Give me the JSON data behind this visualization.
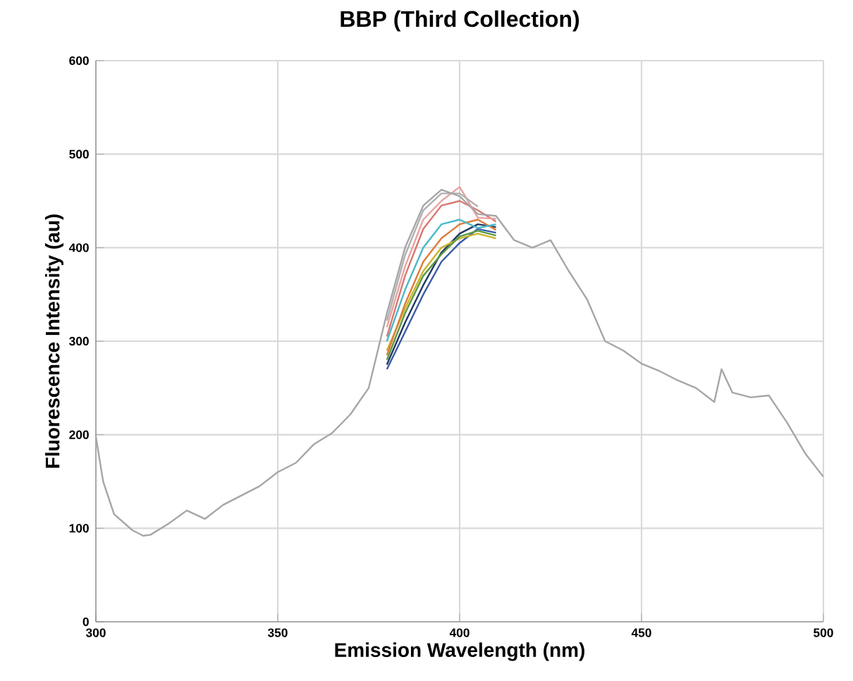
{
  "chart_data": {
    "type": "line",
    "title": "BBP (Third Collection)",
    "xlabel": "Emission Wavelength (nm)",
    "ylabel": "Fluorescence Intensity (au)",
    "xlim": [
      300,
      500
    ],
    "xticks": [
      300,
      350,
      400,
      450,
      500
    ],
    "ylim": [
      0,
      600
    ],
    "yticks": [
      0,
      100,
      200,
      300,
      400,
      500,
      600
    ],
    "grid": true,
    "marker": "none",
    "line_style": "solid",
    "x": [
      300,
      302,
      305,
      310,
      313,
      315,
      320,
      325,
      330,
      335,
      340,
      345,
      350,
      355,
      360,
      365,
      370,
      375,
      380,
      385,
      390,
      395,
      400,
      405,
      410,
      415,
      420,
      425,
      430,
      435,
      440,
      445,
      450,
      455,
      460,
      465,
      470,
      472,
      475,
      480,
      485,
      490,
      495,
      500
    ],
    "series": [
      {
        "color": "#3a5ba8",
        "values": [
          null,
          null,
          null,
          null,
          null,
          null,
          null,
          null,
          null,
          null,
          null,
          null,
          null,
          null,
          null,
          null,
          null,
          null,
          270,
          310,
          350,
          385,
          405,
          420,
          416,
          null,
          null,
          null,
          null,
          null,
          null,
          null,
          null,
          null,
          null,
          null,
          null,
          null,
          null,
          null,
          null,
          null,
          null,
          null
        ]
      },
      {
        "color": "#203864",
        "values": [
          null,
          null,
          null,
          null,
          null,
          null,
          null,
          null,
          null,
          null,
          null,
          null,
          null,
          null,
          null,
          null,
          null,
          null,
          275,
          320,
          360,
          395,
          415,
          425,
          422,
          null,
          null,
          null,
          null,
          null,
          null,
          null,
          null,
          null,
          null,
          null,
          null,
          null,
          null,
          null,
          null,
          null,
          null,
          null
        ]
      },
      {
        "color": "#c9b52a",
        "values": [
          null,
          null,
          null,
          null,
          null,
          null,
          null,
          null,
          null,
          null,
          null,
          null,
          null,
          null,
          null,
          null,
          null,
          null,
          290,
          335,
          375,
          400,
          410,
          415,
          410,
          null,
          null,
          null,
          null,
          null,
          null,
          null,
          null,
          null,
          null,
          null,
          null,
          null,
          null,
          null,
          null,
          null,
          null,
          null
        ]
      },
      {
        "color": "#5b9a44",
        "values": [
          null,
          null,
          null,
          null,
          null,
          null,
          null,
          null,
          null,
          null,
          null,
          null,
          null,
          null,
          null,
          null,
          null,
          null,
          280,
          330,
          370,
          393,
          412,
          418,
          413,
          null,
          null,
          null,
          null,
          null,
          null,
          null,
          null,
          null,
          null,
          null,
          null,
          null,
          null,
          null,
          null,
          null,
          null,
          null
        ]
      },
      {
        "color": "#e07b39",
        "values": [
          null,
          null,
          null,
          null,
          null,
          null,
          null,
          null,
          null,
          null,
          null,
          null,
          null,
          null,
          null,
          null,
          null,
          null,
          285,
          340,
          385,
          410,
          425,
          430,
          419,
          null,
          null,
          null,
          null,
          null,
          null,
          null,
          null,
          null,
          null,
          null,
          null,
          null,
          null,
          null,
          null,
          null,
          null,
          null
        ]
      },
      {
        "color": "#4bb8c8",
        "values": [
          null,
          null,
          null,
          null,
          null,
          null,
          null,
          null,
          null,
          null,
          null,
          null,
          null,
          null,
          null,
          null,
          null,
          null,
          300,
          355,
          400,
          425,
          430,
          421,
          425,
          null,
          null,
          null,
          null,
          null,
          null,
          null,
          null,
          null,
          null,
          null,
          null,
          null,
          null,
          null,
          null,
          null,
          null,
          null
        ]
      },
      {
        "color": "#d9776e",
        "values": [
          null,
          null,
          null,
          null,
          null,
          null,
          null,
          null,
          null,
          null,
          null,
          null,
          null,
          null,
          null,
          null,
          null,
          null,
          305,
          370,
          420,
          445,
          450,
          440,
          428,
          null,
          null,
          null,
          null,
          null,
          null,
          null,
          null,
          null,
          null,
          null,
          null,
          null,
          null,
          null,
          null,
          null,
          null,
          null
        ]
      },
      {
        "color": "#e8a3a0",
        "values": [
          null,
          null,
          null,
          null,
          null,
          null,
          null,
          null,
          null,
          null,
          null,
          null,
          null,
          null,
          null,
          null,
          null,
          null,
          315,
          380,
          430,
          450,
          465,
          432,
          431,
          null,
          null,
          null,
          null,
          null,
          null,
          null,
          null,
          null,
          null,
          null,
          null,
          null,
          null,
          null,
          null,
          null,
          null,
          null
        ]
      },
      {
        "color": "#b0b0b0",
        "values": [
          null,
          null,
          null,
          null,
          null,
          null,
          null,
          null,
          null,
          null,
          null,
          null,
          null,
          null,
          null,
          null,
          null,
          null,
          322,
          392,
          440,
          458,
          458,
          444,
          null,
          null,
          null,
          null,
          null,
          null,
          null,
          null,
          null,
          null,
          null,
          null,
          null,
          null,
          null,
          null,
          null,
          null,
          null,
          null
        ]
      },
      {
        "color": "#a6a6a6",
        "values": [
          198,
          150,
          115,
          98,
          92,
          93,
          105,
          119,
          110,
          125,
          135,
          145,
          160,
          170,
          190,
          202,
          222,
          250,
          330,
          400,
          445,
          462,
          455,
          436,
          434,
          408,
          400,
          408,
          375,
          345,
          300,
          290,
          276,
          268,
          258,
          250,
          235,
          270,
          245,
          240,
          242,
          213,
          180,
          155
        ]
      }
    ]
  }
}
